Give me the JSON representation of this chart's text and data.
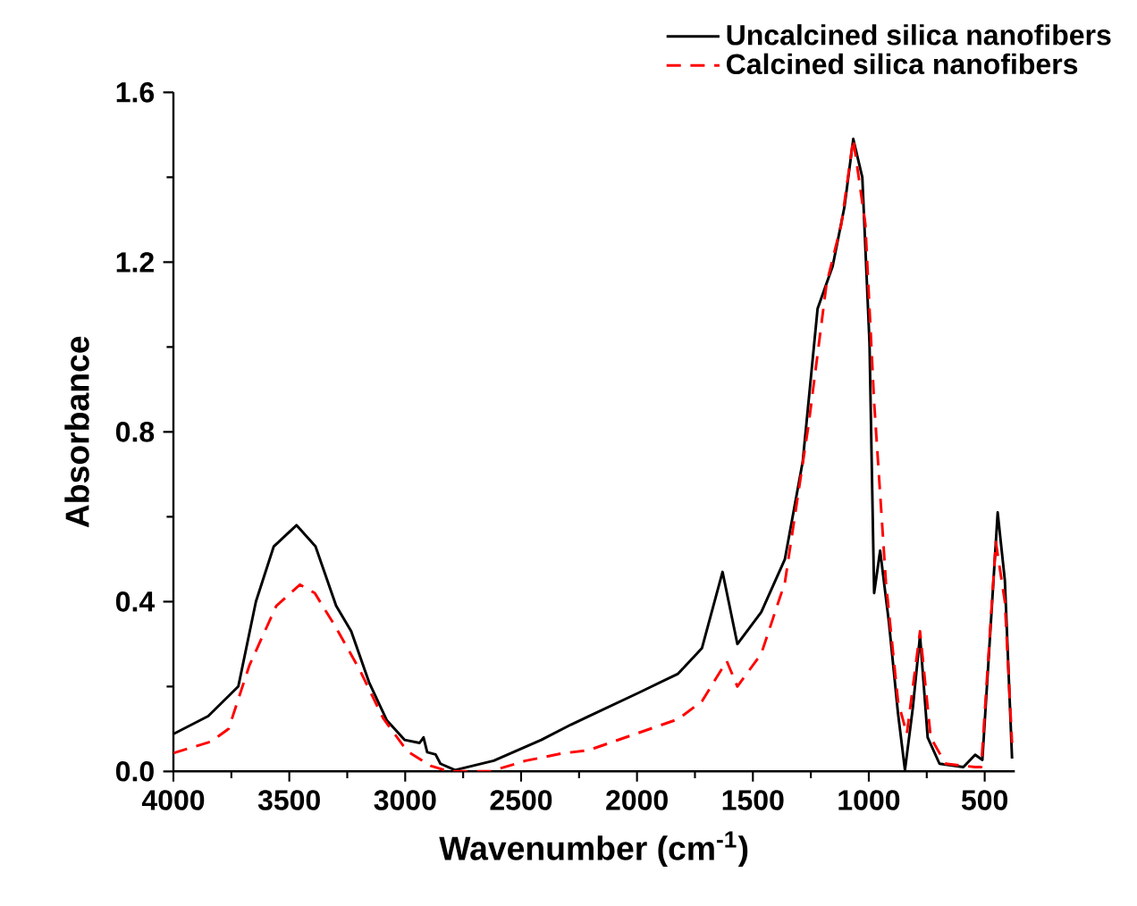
{
  "chart_data": {
    "type": "line",
    "xlabel": "Wavenumber (cm$^{-1}$)",
    "ylabel": "Absorbance",
    "xlim": [
      4000,
      370
    ],
    "xticks": [
      4000,
      3500,
      3000,
      2500,
      2000,
      1500,
      1000,
      500
    ],
    "ylim": [
      0,
      1.6
    ],
    "yticks": [
      {
        "value": 0,
        "label": "0.0"
      },
      0.4,
      0.8,
      1.2,
      1.6
    ],
    "legend": "top right",
    "marker": "none",
    "series": [
      {
        "name": "Uncalcined silica nanofibers",
        "color": "#000000",
        "line_style": "solid",
        "x": [
          4000,
          3850,
          3720,
          3644,
          3567,
          3469,
          3387,
          3298,
          3233,
          3156,
          3079,
          3002,
          2938,
          2921,
          2905,
          2869,
          2848,
          2785,
          2618,
          2413,
          2285,
          2208,
          1990,
          1823,
          1720,
          1631,
          1567,
          1464,
          1362,
          1285,
          1221,
          1156,
          1105,
          1067,
          1028,
          997,
          977,
          951,
          913,
          874,
          844,
          810,
          779,
          746,
          695,
          592,
          541,
          510,
          444,
          413,
          382
        ],
        "values": [
          0.088,
          0.13,
          0.2,
          0.4,
          0.53,
          0.58,
          0.53,
          0.39,
          0.33,
          0.21,
          0.12,
          0.074,
          0.067,
          0.08,
          0.045,
          0.04,
          0.018,
          0.003,
          0.025,
          0.074,
          0.11,
          0.13,
          0.186,
          0.23,
          0.29,
          0.47,
          0.3,
          0.375,
          0.5,
          0.73,
          1.09,
          1.19,
          1.33,
          1.49,
          1.4,
          1.01,
          0.42,
          0.52,
          0.35,
          0.137,
          0.003,
          0.15,
          0.32,
          0.08,
          0.018,
          0.01,
          0.039,
          0.027,
          0.61,
          0.45,
          0.03
        ]
      },
      {
        "name": "Calcined silica nanofibers",
        "color": "#ff0000",
        "line_style": "dashed",
        "x": [
          4000,
          3838,
          3762,
          3672,
          3556,
          3454,
          3390,
          3300,
          3197,
          3095,
          2992,
          2890,
          2813,
          2633,
          2480,
          2326,
          2208,
          1823,
          1720,
          1613,
          1567,
          1464,
          1362,
          1259,
          1182,
          1118,
          1067,
          1015,
          977,
          926,
          874,
          836,
          779,
          733,
          669,
          541,
          515,
          452,
          413,
          382
        ],
        "values": [
          0.043,
          0.07,
          0.1,
          0.25,
          0.39,
          0.44,
          0.42,
          0.34,
          0.24,
          0.125,
          0.048,
          0.013,
          0.0,
          0.0,
          0.025,
          0.042,
          0.05,
          0.123,
          0.165,
          0.26,
          0.2,
          0.277,
          0.445,
          0.82,
          1.15,
          1.29,
          1.49,
          1.29,
          0.87,
          0.445,
          0.165,
          0.088,
          0.33,
          0.08,
          0.018,
          0.01,
          0.01,
          0.54,
          0.4,
          0.067
        ]
      }
    ]
  }
}
